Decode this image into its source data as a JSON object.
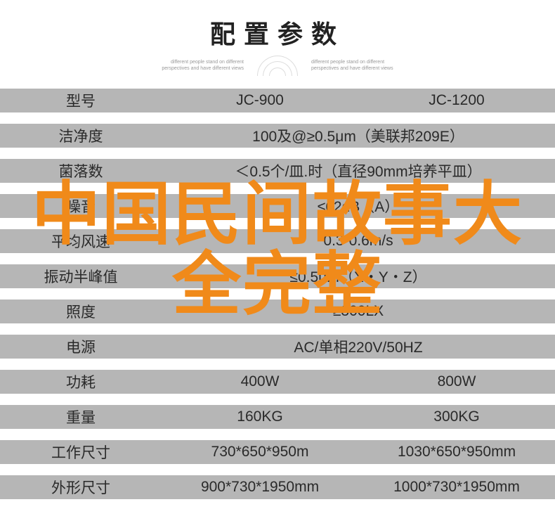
{
  "title": "配置参数",
  "subtitle_left": "different people stand on different perspectives and have different views",
  "subtitle_right": "different people stand on different perspectives and have different views",
  "columns": {
    "label": "型号",
    "c2": "JC-900",
    "c3": "JC-1200"
  },
  "rows": [
    {
      "label": "洁净度",
      "type": "full",
      "full": "100及@≥0.5μm（美联邦209E）"
    },
    {
      "label": "菌落数",
      "type": "full",
      "full": "＜0.5个/皿.时（直径90mm培养平皿）"
    },
    {
      "label": "噪音",
      "type": "full",
      "full": "≤62dB（A）"
    },
    {
      "label": "平均风速",
      "type": "full",
      "full": "0.3-0.6m/s"
    },
    {
      "label": "振动半峰值",
      "type": "full",
      "full": "≤0.5μm（X・Y・Z）"
    },
    {
      "label": "照度",
      "type": "full",
      "full": "≥300LX"
    },
    {
      "label": "电源",
      "type": "full",
      "full": "AC/单相220V/50HZ"
    },
    {
      "label": "功耗",
      "type": "split",
      "c2": "400W",
      "c3": "800W"
    },
    {
      "label": "重量",
      "type": "split",
      "c2": "160KG",
      "c3": "300KG"
    },
    {
      "label": "工作尺寸",
      "type": "split",
      "c2": "730*650*950m",
      "c3": "1030*650*950mm"
    },
    {
      "label": "外形尺寸",
      "type": "split",
      "c2": "900*730*1950mm",
      "c3": "1000*730*1950mm"
    }
  ],
  "watermark": "中国民间故事大全完整",
  "colors": {
    "header_bg": "#b6b6b6",
    "data_bg": "#ffffff",
    "text": "#2a2a2a",
    "watermark": "#f08a1a"
  }
}
